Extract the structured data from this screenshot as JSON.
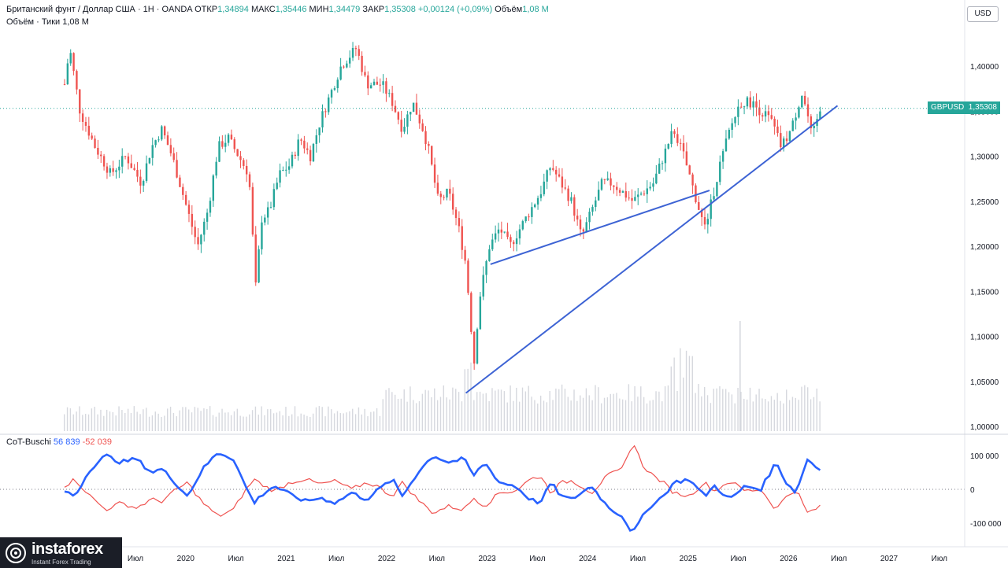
{
  "header": {
    "symbol": "Британский фунт / Доллар США · 1Н · OANDA",
    "open_label": "ОТКР",
    "open": "1,34894",
    "high_label": "МАКС",
    "high": "1,35446",
    "low_label": "МИН",
    "low": "1,34479",
    "close_label": "ЗАКР",
    "close": "1,35308",
    "change": "+0,00124 (+0,09%)",
    "volume_label": "Объём",
    "volume": "1,08 M",
    "volume_line": "Объём · Тики",
    "volume_line_value": "1,08 M"
  },
  "currency_button": "USD",
  "price_tag": {
    "symbol": "GBPUSD",
    "value": "1,35308"
  },
  "indicator": {
    "name": "CoT-Buschi",
    "value1": "56 839",
    "value2": "-52 039"
  },
  "logo": {
    "brand": "instaforex",
    "tagline": "Instant Forex Trading"
  },
  "colors": {
    "up": "#26a69a",
    "down": "#ef5350",
    "trend": "#3d63d4",
    "cot_long": "#2962ff",
    "cot_short": "#ef5350"
  },
  "chart_data": {
    "type": "candlestick",
    "price_axis": {
      "ticks": [
        "1,40000",
        "1,35000",
        "1,30000",
        "1,25000",
        "1,20000",
        "1,15000",
        "1,10000",
        "1,05000",
        "1,00000"
      ],
      "ylim": [
        1.0,
        1.4
      ]
    },
    "indicator_axis": {
      "ticks": [
        "100 000",
        "0",
        "-100 000"
      ]
    },
    "time_axis": [
      "Июл",
      "2020",
      "Июл",
      "2021",
      "Июл",
      "2022",
      "Июл",
      "2023",
      "Июл",
      "2024",
      "Июл",
      "2025",
      "Июл",
      "2026",
      "Июл",
      "2027",
      "Июл"
    ],
    "price_path": [
      [
        2019.0,
        1.38
      ],
      [
        2019.05,
        1.42
      ],
      [
        2019.15,
        1.35
      ],
      [
        2019.3,
        1.31
      ],
      [
        2019.45,
        1.28
      ],
      [
        2019.6,
        1.3
      ],
      [
        2019.75,
        1.27
      ],
      [
        2019.85,
        1.31
      ],
      [
        2019.95,
        1.33
      ],
      [
        2020.05,
        1.3
      ],
      [
        2020.15,
        1.26
      ],
      [
        2020.3,
        1.2
      ],
      [
        2020.4,
        1.24
      ],
      [
        2020.5,
        1.31
      ],
      [
        2020.6,
        1.32
      ],
      [
        2020.7,
        1.3
      ],
      [
        2020.8,
        1.28
      ],
      [
        2020.87,
        1.15
      ],
      [
        2020.92,
        1.23
      ],
      [
        2021.0,
        1.24
      ],
      [
        2021.1,
        1.28
      ],
      [
        2021.2,
        1.29
      ],
      [
        2021.3,
        1.32
      ],
      [
        2021.4,
        1.3
      ],
      [
        2021.5,
        1.34
      ],
      [
        2021.6,
        1.37
      ],
      [
        2021.7,
        1.4
      ],
      [
        2021.85,
        1.42
      ],
      [
        2021.95,
        1.38
      ],
      [
        2022.1,
        1.38
      ],
      [
        2022.2,
        1.36
      ],
      [
        2022.3,
        1.33
      ],
      [
        2022.4,
        1.36
      ],
      [
        2022.5,
        1.33
      ],
      [
        2022.55,
        1.31
      ],
      [
        2022.65,
        1.25
      ],
      [
        2022.75,
        1.26
      ],
      [
        2022.85,
        1.22
      ],
      [
        2022.92,
        1.18
      ],
      [
        2023.0,
        1.07
      ],
      [
        2023.05,
        1.14
      ],
      [
        2023.15,
        1.2
      ],
      [
        2023.25,
        1.22
      ],
      [
        2023.35,
        1.2
      ],
      [
        2023.45,
        1.22
      ],
      [
        2023.55,
        1.24
      ],
      [
        2023.65,
        1.26
      ],
      [
        2023.75,
        1.29
      ],
      [
        2023.85,
        1.27
      ],
      [
        2023.95,
        1.25
      ],
      [
        2024.05,
        1.21
      ],
      [
        2024.15,
        1.24
      ],
      [
        2024.25,
        1.27
      ],
      [
        2024.35,
        1.27
      ],
      [
        2024.45,
        1.26
      ],
      [
        2024.55,
        1.25
      ],
      [
        2024.65,
        1.26
      ],
      [
        2024.75,
        1.27
      ],
      [
        2024.85,
        1.3
      ],
      [
        2024.95,
        1.33
      ],
      [
        2025.05,
        1.3
      ],
      [
        2025.15,
        1.26
      ],
      [
        2025.25,
        1.22
      ],
      [
        2025.3,
        1.24
      ],
      [
        2025.4,
        1.29
      ],
      [
        2025.5,
        1.33
      ],
      [
        2025.6,
        1.36
      ],
      [
        2025.7,
        1.36
      ],
      [
        2025.8,
        1.35
      ],
      [
        2025.9,
        1.34
      ],
      [
        2026.0,
        1.31
      ],
      [
        2026.1,
        1.33
      ],
      [
        2026.2,
        1.37
      ],
      [
        2026.25,
        1.35
      ],
      [
        2026.3,
        1.32
      ],
      [
        2026.38,
        1.35
      ]
    ],
    "cot_long_path": [
      [
        2019.0,
        -5000
      ],
      [
        2019.1,
        -20000
      ],
      [
        2019.25,
        60000
      ],
      [
        2019.4,
        100000
      ],
      [
        2019.55,
        80000
      ],
      [
        2019.7,
        90000
      ],
      [
        2019.85,
        50000
      ],
      [
        2019.95,
        60000
      ],
      [
        2020.05,
        30000
      ],
      [
        2020.2,
        -20000
      ],
      [
        2020.35,
        60000
      ],
      [
        2020.5,
        110000
      ],
      [
        2020.65,
        90000
      ],
      [
        2020.75,
        20000
      ],
      [
        2020.85,
        -40000
      ],
      [
        2020.95,
        -10000
      ],
      [
        2021.05,
        10000
      ],
      [
        2021.2,
        -15000
      ],
      [
        2021.35,
        -35000
      ],
      [
        2021.5,
        -25000
      ],
      [
        2021.65,
        -40000
      ],
      [
        2021.8,
        -10000
      ],
      [
        2021.95,
        -30000
      ],
      [
        2022.05,
        -5000
      ],
      [
        2022.2,
        30000
      ],
      [
        2022.3,
        -20000
      ],
      [
        2022.45,
        50000
      ],
      [
        2022.6,
        100000
      ],
      [
        2022.75,
        80000
      ],
      [
        2022.9,
        90000
      ],
      [
        2023.0,
        40000
      ],
      [
        2023.1,
        80000
      ],
      [
        2023.25,
        20000
      ],
      [
        2023.4,
        10000
      ],
      [
        2023.55,
        -30000
      ],
      [
        2023.65,
        -40000
      ],
      [
        2023.75,
        20000
      ],
      [
        2023.85,
        -20000
      ],
      [
        2023.95,
        -30000
      ],
      [
        2024.05,
        -10000
      ],
      [
        2024.15,
        10000
      ],
      [
        2024.3,
        -50000
      ],
      [
        2024.45,
        -80000
      ],
      [
        2024.55,
        -130000
      ],
      [
        2024.65,
        -80000
      ],
      [
        2024.75,
        -40000
      ],
      [
        2024.85,
        -20000
      ],
      [
        2024.95,
        20000
      ],
      [
        2025.1,
        30000
      ],
      [
        2025.25,
        -20000
      ],
      [
        2025.35,
        10000
      ],
      [
        2025.5,
        -30000
      ],
      [
        2025.65,
        10000
      ],
      [
        2025.8,
        0
      ],
      [
        2025.95,
        80000
      ],
      [
        2026.05,
        20000
      ],
      [
        2026.15,
        -10000
      ],
      [
        2026.25,
        90000
      ],
      [
        2026.38,
        57000
      ]
    ],
    "cot_short_path": [
      [
        2019.0,
        10000
      ],
      [
        2019.1,
        30000
      ],
      [
        2019.25,
        -20000
      ],
      [
        2019.4,
        -60000
      ],
      [
        2019.55,
        -40000
      ],
      [
        2019.7,
        -55000
      ],
      [
        2019.85,
        -30000
      ],
      [
        2019.95,
        -35000
      ],
      [
        2020.05,
        -10000
      ],
      [
        2020.2,
        20000
      ],
      [
        2020.35,
        -40000
      ],
      [
        2020.5,
        -80000
      ],
      [
        2020.65,
        -60000
      ],
      [
        2020.75,
        -10000
      ],
      [
        2020.85,
        30000
      ],
      [
        2020.95,
        10000
      ],
      [
        2021.05,
        -5000
      ],
      [
        2021.2,
        20000
      ],
      [
        2021.35,
        30000
      ],
      [
        2021.5,
        15000
      ],
      [
        2021.65,
        25000
      ],
      [
        2021.8,
        0
      ],
      [
        2021.95,
        20000
      ],
      [
        2022.05,
        10000
      ],
      [
        2022.2,
        -20000
      ],
      [
        2022.3,
        20000
      ],
      [
        2022.45,
        -30000
      ],
      [
        2022.6,
        -70000
      ],
      [
        2022.75,
        -50000
      ],
      [
        2022.9,
        -60000
      ],
      [
        2023.0,
        -25000
      ],
      [
        2023.1,
        -50000
      ],
      [
        2023.25,
        -10000
      ],
      [
        2023.4,
        -5000
      ],
      [
        2023.55,
        30000
      ],
      [
        2023.65,
        40000
      ],
      [
        2023.75,
        -10000
      ],
      [
        2023.85,
        20000
      ],
      [
        2023.95,
        25000
      ],
      [
        2024.05,
        10000
      ],
      [
        2024.15,
        -10000
      ],
      [
        2024.3,
        40000
      ],
      [
        2024.45,
        60000
      ],
      [
        2024.55,
        140000
      ],
      [
        2024.65,
        70000
      ],
      [
        2024.75,
        40000
      ],
      [
        2024.85,
        20000
      ],
      [
        2024.95,
        -10000
      ],
      [
        2025.1,
        -20000
      ],
      [
        2025.25,
        20000
      ],
      [
        2025.35,
        -5000
      ],
      [
        2025.5,
        25000
      ],
      [
        2025.65,
        -5000
      ],
      [
        2025.8,
        0
      ],
      [
        2025.95,
        -60000
      ],
      [
        2026.05,
        -20000
      ],
      [
        2026.15,
        0
      ],
      [
        2026.25,
        -70000
      ],
      [
        2026.38,
        -52000
      ]
    ],
    "trendlines": [
      {
        "from": [
          "2022.92",
          1.037
        ],
        "to": [
          "2026.55",
          1.356
        ]
      },
      {
        "from": [
          "2023.16",
          1.18
        ],
        "to": [
          "2025.3",
          1.262
        ]
      }
    ]
  }
}
